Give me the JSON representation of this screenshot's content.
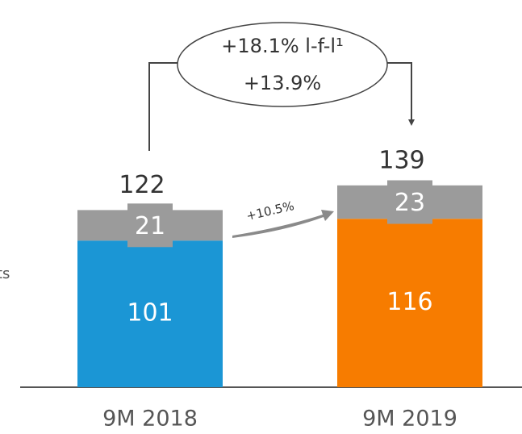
{
  "chart_data": {
    "type": "stacked_bar",
    "categories": [
      "9M 2018",
      "9M 2019"
    ],
    "series": [
      {
        "name": null,
        "colors": [
          "#1b96d5",
          "#f77c00"
        ],
        "values": [
          101,
          116
        ]
      },
      {
        "name": null,
        "color": "#9b9b9b",
        "values": [
          21,
          23
        ]
      }
    ],
    "totals": [
      122,
      139
    ],
    "annotations": [
      "+18.1% l-f-l¹",
      "+13.9%",
      "+10.5%"
    ],
    "legend_fragment": "ts"
  }
}
